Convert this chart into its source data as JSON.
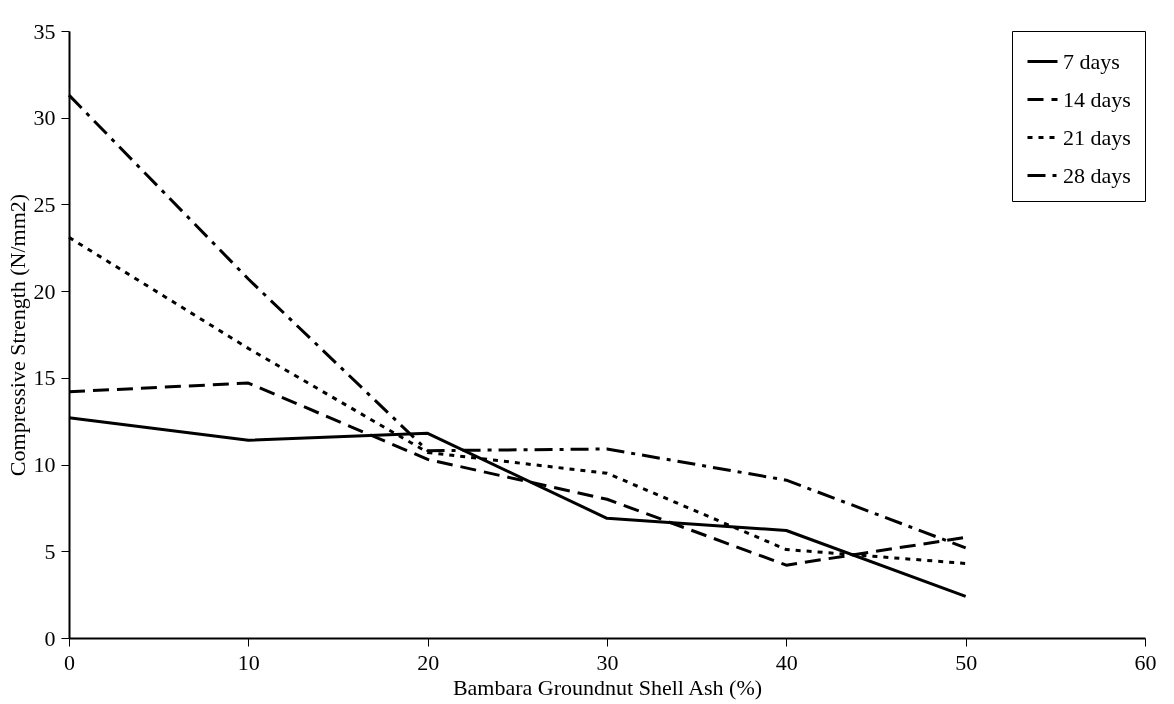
{
  "chart_data": {
    "type": "line",
    "xlabel": "Bambara Groundnut Shell Ash (%)",
    "ylabel": "Compressive Strength (N/mm2)",
    "x": [
      0,
      10,
      20,
      30,
      40,
      50
    ],
    "xlim": [
      0,
      60
    ],
    "xticks": [
      0,
      10,
      20,
      30,
      40,
      50,
      60
    ],
    "ylim": [
      0,
      35
    ],
    "yticks": [
      0,
      5,
      10,
      15,
      20,
      25,
      30,
      35
    ],
    "grid": false,
    "legend": "top right",
    "marker": "none",
    "series": [
      {
        "name": "7 days",
        "color": "#000000",
        "line_style": "solid",
        "values": [
          12.7,
          11.4,
          11.8,
          6.9,
          6.2,
          2.4
        ]
      },
      {
        "name": "14 days",
        "color": "#000000",
        "line_style": "dashed",
        "values": [
          14.2,
          14.7,
          10.3,
          8.0,
          4.2,
          5.8
        ]
      },
      {
        "name": "21 days",
        "color": "#000000",
        "line_style": "dotted",
        "values": [
          23.1,
          16.7,
          10.7,
          9.5,
          5.1,
          4.3
        ]
      },
      {
        "name": "28 days",
        "color": "#000000",
        "line_style": "dashdot",
        "values": [
          31.3,
          20.7,
          10.8,
          10.9,
          9.1,
          5.2
        ]
      }
    ]
  }
}
